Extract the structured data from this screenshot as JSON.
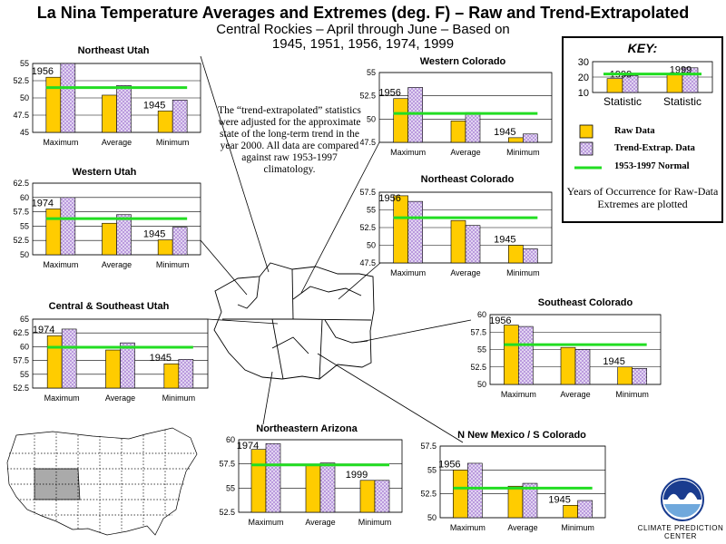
{
  "header": {
    "title": "La Nina Temperature Averages and Extremes (deg.  F) – Raw and Trend-Extrapolated",
    "subtitle_line1": "Central Rockies – April through June –  Based on",
    "subtitle_line2": "1945, 1951, 1956, 1974, 1999"
  },
  "note": "The “trend-extrapolated” statistics were adjusted for the approximate state of the long-term trend in the year 2000.  All data are compared against raw 1953-1997 climatology.",
  "key": {
    "title": "KEY:",
    "raw_label": "Raw Data",
    "trend_label": "Trend-Extrap. Data",
    "normal_label": "1953-1997 Normal",
    "note": "Years of Occurrence for Raw-Data Extremes are plotted",
    "mini_chart": {
      "categories": [
        "Statistic",
        "Statistic"
      ],
      "raw": [
        19,
        22
      ],
      "trend": [
        21,
        26
      ],
      "normal": 22,
      "year_labels": [
        "1999",
        "1999"
      ],
      "y_ticks": [
        "30",
        "20",
        "10"
      ],
      "ylim": [
        10,
        30
      ]
    }
  },
  "colors": {
    "raw": "#FFCC00",
    "trend": "#E8DDF5",
    "trend_pattern": "#B08CD8",
    "normal": "#22DD22"
  },
  "chart_data": [
    {
      "type": "bar",
      "title": "Northeast Utah",
      "categories": [
        "Maximum",
        "Average",
        "Minimum"
      ],
      "series": [
        {
          "name": "Raw Data",
          "values": [
            53.0,
            50.4,
            48.1
          ]
        },
        {
          "name": "Trend-Extrap. Data",
          "values": [
            55.0,
            51.8,
            49.7
          ]
        }
      ],
      "normal": 51.5,
      "ylim": [
        45,
        55
      ],
      "y_ticks": [
        "55",
        "52.5",
        "50",
        "47.5",
        "45"
      ],
      "year_labels": [
        {
          "category": "Maximum",
          "text": "1956"
        },
        {
          "category": "Minimum",
          "text": "1945"
        }
      ]
    },
    {
      "type": "bar",
      "title": "Western Colorado",
      "categories": [
        "Maximum",
        "Average",
        "Minimum"
      ],
      "series": [
        {
          "name": "Raw Data",
          "values": [
            52.2,
            49.8,
            48.0
          ]
        },
        {
          "name": "Trend-Extrap. Data",
          "values": [
            53.4,
            50.7,
            48.4
          ]
        }
      ],
      "normal": 50.6,
      "ylim": [
        47.5,
        55
      ],
      "y_ticks": [
        "55",
        "52.5",
        "50",
        "47.5"
      ],
      "year_labels": [
        {
          "category": "Maximum",
          "text": "1956"
        },
        {
          "category": "Minimum",
          "text": "1945"
        }
      ]
    },
    {
      "type": "bar",
      "title": "Western Utah",
      "categories": [
        "Maximum",
        "Average",
        "Minimum"
      ],
      "series": [
        {
          "name": "Raw Data",
          "values": [
            58.0,
            55.5,
            52.6
          ]
        },
        {
          "name": "Trend-Extrap. Data",
          "values": [
            60.0,
            57.0,
            54.8
          ]
        }
      ],
      "normal": 56.3,
      "ylim": [
        50,
        62.5
      ],
      "y_ticks": [
        "62.5",
        "60",
        "57.5",
        "55",
        "52.5",
        "50"
      ],
      "year_labels": [
        {
          "category": "Maximum",
          "text": "1974"
        },
        {
          "category": "Minimum",
          "text": "1945"
        }
      ]
    },
    {
      "type": "bar",
      "title": "Northeast Colorado",
      "categories": [
        "Maximum",
        "Average",
        "Minimum"
      ],
      "series": [
        {
          "name": "Raw Data",
          "values": [
            57.0,
            53.5,
            50.0
          ]
        },
        {
          "name": "Trend-Extrap. Data",
          "values": [
            56.2,
            52.8,
            49.5
          ]
        }
      ],
      "normal": 53.9,
      "ylim": [
        47.5,
        57.5
      ],
      "y_ticks": [
        "57.5",
        "55",
        "52.5",
        "50",
        "47.5"
      ],
      "year_labels": [
        {
          "category": "Maximum",
          "text": "1956"
        },
        {
          "category": "Minimum",
          "text": "1945"
        }
      ]
    },
    {
      "type": "bar",
      "title": "Central & Southeast Utah",
      "categories": [
        "Maximum",
        "Average",
        "Minimum"
      ],
      "series": [
        {
          "name": "Raw Data",
          "values": [
            62.0,
            59.4,
            56.9
          ]
        },
        {
          "name": "Trend-Extrap. Data",
          "values": [
            63.2,
            60.7,
            57.7
          ]
        }
      ],
      "normal": 59.9,
      "ylim": [
        52.5,
        65
      ],
      "y_ticks": [
        "65",
        "62.5",
        "60",
        "57.5",
        "55",
        "52.5"
      ],
      "year_labels": [
        {
          "category": "Maximum",
          "text": "1974"
        },
        {
          "category": "Minimum",
          "text": "1945"
        }
      ]
    },
    {
      "type": "bar",
      "title": "Southeast Colorado",
      "categories": [
        "Maximum",
        "Average",
        "Minimum"
      ],
      "series": [
        {
          "name": "Raw Data",
          "values": [
            58.5,
            55.3,
            52.5
          ]
        },
        {
          "name": "Trend-Extrap. Data",
          "values": [
            58.3,
            55.0,
            52.3
          ]
        }
      ],
      "normal": 55.7,
      "ylim": [
        50,
        60
      ],
      "y_ticks": [
        "60",
        "57.5",
        "55",
        "52.5",
        "50"
      ],
      "year_labels": [
        {
          "category": "Maximum",
          "text": "1956"
        },
        {
          "category": "Minimum",
          "text": "1945"
        }
      ]
    },
    {
      "type": "bar",
      "title": "Northeastern Arizona",
      "categories": [
        "Maximum",
        "Average",
        "Minimum"
      ],
      "series": [
        {
          "name": "Raw Data",
          "values": [
            59.0,
            57.4,
            55.8
          ]
        },
        {
          "name": "Trend-Extrap. Data",
          "values": [
            59.6,
            57.6,
            55.8
          ]
        }
      ],
      "normal": 57.4,
      "ylim": [
        52.5,
        60
      ],
      "y_ticks": [
        "60",
        "57.5",
        "55",
        "52.5"
      ],
      "year_labels": [
        {
          "category": "Maximum",
          "text": "1974"
        },
        {
          "category": "Minimum",
          "text": "1999"
        }
      ]
    },
    {
      "type": "bar",
      "title": "N New Mexico / S Colorado",
      "categories": [
        "Maximum",
        "Average",
        "Minimum"
      ],
      "series": [
        {
          "name": "Raw Data",
          "values": [
            55.0,
            53.3,
            51.3
          ]
        },
        {
          "name": "Trend-Extrap. Data",
          "values": [
            55.7,
            53.6,
            51.8
          ]
        }
      ],
      "normal": 53.1,
      "ylim": [
        50,
        57.5
      ],
      "y_ticks": [
        "57.5",
        "55",
        "52.5",
        "50"
      ],
      "year_labels": [
        {
          "category": "Maximum",
          "text": "1956"
        },
        {
          "category": "Minimum",
          "text": "1945"
        }
      ]
    }
  ],
  "logo": {
    "label_line1": "CLIMATE PREDICTION",
    "label_line2": "CENTER"
  }
}
